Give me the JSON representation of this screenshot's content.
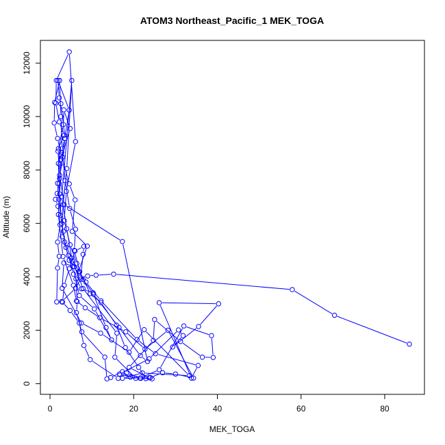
{
  "chart_data": {
    "type": "line",
    "title": "ATOM3 Northeast_Pacific_1 MEK_TOGA",
    "xlabel": "MEK_TOGA",
    "ylabel": "Altitude (m)",
    "xlim": [
      -2.3,
      89.5
    ],
    "ylim": [
      -400,
      12850
    ],
    "x_ticks": [
      0,
      20,
      40,
      60,
      80
    ],
    "y_ticks": [
      0,
      2000,
      4000,
      6000,
      8000,
      10000,
      12000
    ],
    "grid": false,
    "legend": "none",
    "marker": "open-circle",
    "series": [
      {
        "color": "#0000ff",
        "points": [
          [
            85.9,
            1480
          ],
          [
            68.0,
            2560
          ],
          [
            57.9,
            3520
          ],
          [
            15.2,
            4100
          ],
          [
            11.0,
            4060
          ],
          [
            9.0,
            4030
          ],
          [
            7.2,
            3980
          ],
          [
            5.8,
            4380
          ],
          [
            4.6,
            4620
          ],
          [
            3.8,
            5100
          ],
          [
            3.2,
            5700
          ],
          [
            2.5,
            6300
          ],
          [
            2.1,
            6900
          ],
          [
            1.8,
            7500
          ],
          [
            2.4,
            8200
          ],
          [
            2.0,
            8800
          ],
          [
            3.4,
            9300
          ],
          [
            2.2,
            9800
          ],
          [
            1.4,
            10500
          ],
          [
            1.5,
            11350
          ],
          [
            4.6,
            12420
          ],
          [
            6.1,
            9060
          ],
          [
            3.9,
            7200
          ],
          [
            3.4,
            6100
          ],
          [
            4.8,
            5200
          ],
          [
            6.4,
            4500
          ],
          [
            7.9,
            3900
          ],
          [
            10.4,
            3350
          ],
          [
            16.5,
            2100
          ],
          [
            21.6,
            1050
          ],
          [
            23.3,
            830
          ],
          [
            17.3,
            5320
          ],
          [
            3.4,
            6700
          ],
          [
            2.3,
            7800
          ],
          [
            1.9,
            8700
          ],
          [
            3.2,
            9700
          ],
          [
            3.3,
            10250
          ],
          [
            4.8,
            9550
          ],
          [
            2.6,
            8400
          ],
          [
            2.3,
            7100
          ],
          [
            2.8,
            6000
          ],
          [
            3.5,
            5300
          ],
          [
            5.1,
            4700
          ],
          [
            6.9,
            4200
          ],
          [
            8.6,
            3800
          ],
          [
            12.2,
            3100
          ],
          [
            20.8,
            1650
          ],
          [
            25.2,
            1120
          ],
          [
            35.4,
            680
          ],
          [
            33.8,
            210
          ],
          [
            26.1,
            3030
          ],
          [
            40.3,
            2990
          ],
          [
            35.5,
            2140
          ],
          [
            29.3,
            1370
          ],
          [
            31.8,
            1800
          ],
          [
            30.7,
            2010
          ],
          [
            23.7,
            930
          ],
          [
            16.6,
            360
          ],
          [
            20.5,
            200
          ],
          [
            15.5,
            990
          ],
          [
            16.0,
            1890
          ],
          [
            7.9,
            3560
          ],
          [
            5.3,
            4600
          ],
          [
            4.0,
            5800
          ],
          [
            2.8,
            7000
          ],
          [
            5.2,
            11350
          ],
          [
            4.0,
            8050
          ],
          [
            3.1,
            6700
          ],
          [
            2.9,
            5500
          ],
          [
            4.4,
            4800
          ],
          [
            5.6,
            4100
          ],
          [
            7.5,
            3550
          ],
          [
            10.3,
            3400
          ],
          [
            13.4,
            2100
          ],
          [
            14.7,
            1640
          ],
          [
            10.6,
            2800
          ],
          [
            7.0,
            3300
          ],
          [
            5.5,
            4380
          ],
          [
            3.3,
            4520
          ],
          [
            2.9,
            3570
          ],
          [
            7.5,
            2270
          ],
          [
            12.1,
            1890
          ],
          [
            18.9,
            1180
          ],
          [
            22.5,
            2020
          ],
          [
            33.3,
            300
          ],
          [
            22.1,
            400
          ],
          [
            17.3,
            200
          ],
          [
            23.7,
            220
          ],
          [
            18.9,
            610
          ],
          [
            24.7,
            1620
          ],
          [
            25.0,
            2400
          ],
          [
            31.2,
            1580
          ],
          [
            36.4,
            990
          ],
          [
            39.0,
            980
          ],
          [
            38.6,
            1800
          ],
          [
            32.0,
            2160
          ],
          [
            26.1,
            520
          ],
          [
            21.5,
            210
          ],
          [
            19.2,
            240
          ],
          [
            17.3,
            450
          ],
          [
            14.5,
            230
          ],
          [
            13.6,
            180
          ],
          [
            13.1,
            990
          ],
          [
            7.6,
            1940
          ],
          [
            6.3,
            2660
          ],
          [
            6.5,
            3070
          ],
          [
            6.2,
            3920
          ],
          [
            8.9,
            5150
          ],
          [
            5.3,
            5700
          ],
          [
            6.0,
            6880
          ],
          [
            4.6,
            7480
          ],
          [
            2.7,
            8560
          ],
          [
            1.8,
            9180
          ],
          [
            1.0,
            9760
          ],
          [
            1.1,
            10530
          ],
          [
            2.3,
            11350
          ],
          [
            2.6,
            10000
          ],
          [
            2.9,
            8800
          ],
          [
            3.6,
            7600
          ],
          [
            4.7,
            6560
          ],
          [
            6.1,
            5780
          ],
          [
            5.8,
            4990
          ],
          [
            7.1,
            4190
          ],
          [
            9.6,
            3370
          ],
          [
            12.2,
            3030
          ],
          [
            15.9,
            2190
          ],
          [
            18.0,
            1350
          ],
          [
            21.2,
            610
          ],
          [
            22.9,
            190
          ],
          [
            24.0,
            230
          ],
          [
            26.9,
            410
          ],
          [
            30.0,
            360
          ],
          [
            34.3,
            210
          ],
          [
            28.2,
            2000
          ],
          [
            22.7,
            1290
          ],
          [
            18.1,
            1940
          ],
          [
            11.9,
            2470
          ],
          [
            8.4,
            2840
          ],
          [
            6.3,
            3100
          ],
          [
            5.6,
            3680
          ],
          [
            3.1,
            4760
          ],
          [
            2.0,
            6330
          ],
          [
            2.3,
            7680
          ],
          [
            3.0,
            8480
          ],
          [
            3.6,
            9180
          ],
          [
            2.6,
            10480
          ],
          [
            2.2,
            10700
          ],
          [
            1.9,
            11350
          ],
          [
            4.6,
            10240
          ],
          [
            3.5,
            9180
          ],
          [
            2.8,
            8660
          ],
          [
            2.0,
            8240
          ],
          [
            2.2,
            7490
          ],
          [
            1.7,
            7120
          ],
          [
            1.3,
            6900
          ],
          [
            1.9,
            6640
          ],
          [
            2.4,
            5950
          ],
          [
            1.8,
            5300
          ],
          [
            2.2,
            4770
          ],
          [
            1.8,
            4330
          ],
          [
            1.6,
            3060
          ],
          [
            2.8,
            3070
          ],
          [
            6.1,
            3570
          ],
          [
            7.3,
            3910
          ],
          [
            7.9,
            4840
          ],
          [
            8.1,
            5140
          ],
          [
            6.0,
            4970
          ],
          [
            4.6,
            4300
          ],
          [
            3.4,
            3680
          ],
          [
            3.0,
            3050
          ],
          [
            4.8,
            2740
          ],
          [
            7.0,
            2270
          ],
          [
            8.1,
            1430
          ],
          [
            9.6,
            900
          ],
          [
            16.3,
            200
          ],
          [
            18.3,
            400
          ],
          [
            21.7,
            200
          ],
          [
            24.4,
            180
          ]
        ]
      }
    ]
  }
}
